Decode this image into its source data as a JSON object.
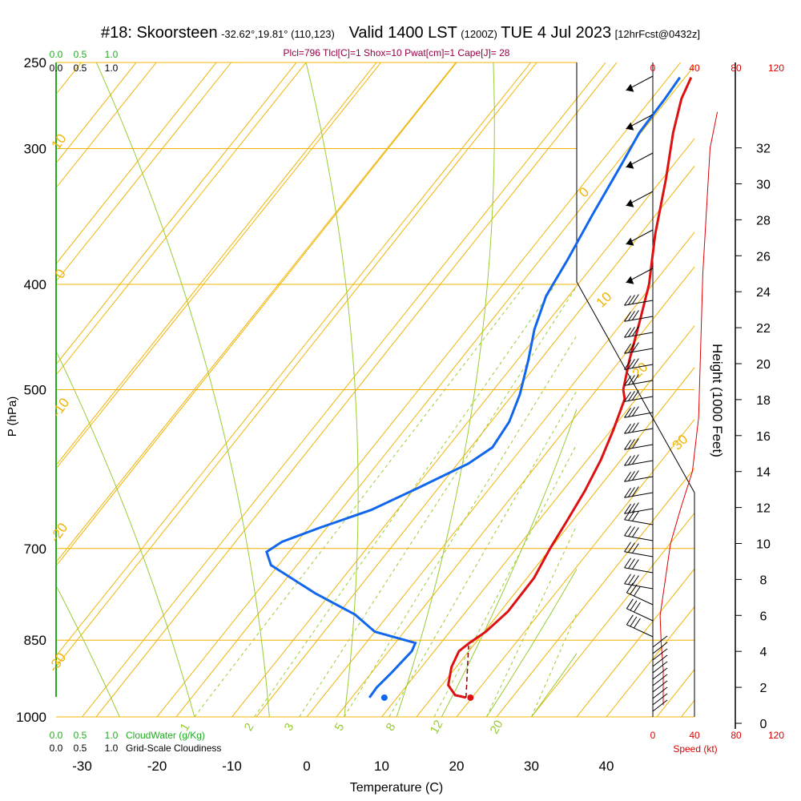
{
  "header": {
    "station": "#18: Skoorsteen",
    "location": "-32.62°,19.81° (110,123)",
    "valid": "Valid 1400 LST",
    "zulu": "(1200Z)",
    "date": "TUE 4 Jul 2023",
    "forecast": "[12hrFcst@0432z]"
  },
  "subtitle": "Plcl=796 Tlcl[C]=1 Shox=10 Pwat[cm]=1 Cape[J]= 28",
  "colors": {
    "temperature": "#dd1111",
    "dewpoint": "#1166ee",
    "isotherm": "#f0b400",
    "mixing_ratio": "#99cc33",
    "cloudwater": "#22aa22",
    "speed": "#dd0000",
    "wind": "#000000"
  },
  "legend": {
    "cloud_top": [
      "0.0",
      "0.5",
      "1.0"
    ],
    "cloudiness_top": [
      "0.0",
      "0.5",
      "1.0"
    ],
    "cloud_bottom": [
      "0.0",
      "0.5",
      "1.0"
    ],
    "cloudwater_label": "CloudWater (g/Kg)",
    "cloudiness_bottom": [
      "0.0",
      "0.5",
      "1.0"
    ],
    "cloudiness_label": "Grid-Scale Cloudiness"
  },
  "chart_data": {
    "type": "line",
    "subtype": "skew-T log-P sounding",
    "xlabel": "Temperature (C)",
    "ylabel": "P (hPa)",
    "y2label": "Height (1000 Feet)",
    "xticks": [
      "-30",
      "-20",
      "-10",
      "0",
      "10",
      "20",
      "30",
      "40"
    ],
    "pressure_ticks": [
      "250",
      "300",
      "400",
      "500",
      "700",
      "850",
      "1000"
    ],
    "height_ticks": [
      "0",
      "2",
      "4",
      "6",
      "8",
      "10",
      "12",
      "14",
      "16",
      "18",
      "20",
      "22",
      "24",
      "26",
      "28",
      "30",
      "32"
    ],
    "speed_ticks": [
      "0",
      "40",
      "80",
      "120"
    ],
    "speed_label": "Speed (kt)",
    "isotherm_labels": [
      "10",
      "0",
      "-10",
      "-20",
      "-30",
      "0",
      "10",
      "20",
      "30"
    ],
    "mixing_labels": [
      "1",
      "2",
      "3",
      "5",
      "8",
      "12",
      "20"
    ],
    "y_scale": "log",
    "x_range": [
      -35,
      42
    ],
    "p_range": [
      1000,
      250
    ],
    "series": [
      {
        "name": "Temperature",
        "unit": "C",
        "points": [
          [
            19.2,
            960
          ],
          [
            17.5,
            955
          ],
          [
            15.5,
            935
          ],
          [
            14,
            900
          ],
          [
            13.3,
            870
          ],
          [
            13.8,
            855
          ],
          [
            14.8,
            835
          ],
          [
            15.6,
            800
          ],
          [
            15.5,
            745
          ],
          [
            14.5,
            700
          ],
          [
            13.8,
            660
          ],
          [
            13,
            620
          ],
          [
            11.8,
            580
          ],
          [
            10.3,
            545
          ],
          [
            8.5,
            510
          ],
          [
            7.3,
            500
          ],
          [
            5,
            470
          ],
          [
            2,
            430
          ],
          [
            -0.5,
            400
          ],
          [
            -5,
            360
          ],
          [
            -9.5,
            320
          ],
          [
            -13.5,
            290
          ],
          [
            -16,
            270
          ],
          [
            -17,
            258
          ]
        ]
      },
      {
        "name": "Dewpoint",
        "unit": "C",
        "points": [
          [
            6.3,
            960
          ],
          [
            6.2,
            940
          ],
          [
            6.6,
            910
          ],
          [
            7,
            870
          ],
          [
            6.6,
            855
          ],
          [
            0,
            835
          ],
          [
            -4.5,
            805
          ],
          [
            -12,
            770
          ],
          [
            -21,
            725
          ],
          [
            -23,
            705
          ],
          [
            -22,
            690
          ],
          [
            -18.5,
            670
          ],
          [
            -13.5,
            645
          ],
          [
            -9.5,
            615
          ],
          [
            -5.5,
            585
          ],
          [
            -4,
            565
          ],
          [
            -4.5,
            535
          ],
          [
            -6,
            505
          ],
          [
            -8.5,
            470
          ],
          [
            -11,
            440
          ],
          [
            -13,
            410
          ],
          [
            -14,
            380
          ],
          [
            -15.5,
            345
          ],
          [
            -17,
            310
          ],
          [
            -18,
            290
          ],
          [
            -18.2,
            270
          ],
          [
            -18.5,
            258
          ]
        ]
      },
      {
        "name": "Parcel",
        "unit": "C",
        "points": [
          [
            19.2,
            960
          ],
          [
            14,
            860
          ]
        ]
      },
      {
        "name": "Speed",
        "unit": "kt",
        "points": [
          [
            10,
            1000
          ],
          [
            10,
            3000
          ],
          [
            8,
            4500
          ],
          [
            7,
            6000
          ],
          [
            12,
            8000
          ],
          [
            17,
            10000
          ],
          [
            27,
            12000
          ],
          [
            38,
            14000
          ],
          [
            44,
            17000
          ],
          [
            46,
            21000
          ],
          [
            48,
            25000
          ],
          [
            52,
            29000
          ],
          [
            55,
            32000
          ],
          [
            62,
            34000
          ]
        ]
      }
    ],
    "surface_temperature": [
      19.8,
      960
    ],
    "surface_dewpoint": [
      8.3,
      960
    ],
    "grid": true
  }
}
